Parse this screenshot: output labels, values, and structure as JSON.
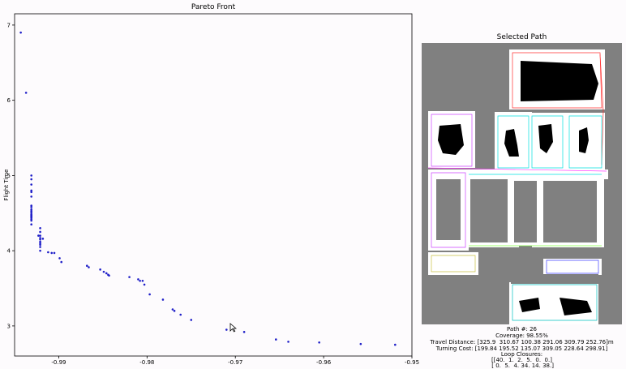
{
  "pareto": {
    "title": "Pareto Front",
    "ylabel": "Flight Time"
  },
  "selected": {
    "title": "Selected Path",
    "path_num": "Path #: 26",
    "coverage": "Coverage: 98.55%",
    "travel": "Travel Distance: [325.9  310.67 100.38 291.06 309.79 252.76]m",
    "turning": "Turning Cost: [199.84 195.52 135.07 309.05 228.64 298.91]",
    "loop_label": "Loop Closures:",
    "loop_row1": "[[40.  1.  2.  5.  0.  0.]",
    "loop_row2": " [ 0.  5.  4. 34. 14. 38.]"
  },
  "colors": {
    "point": "#1f1fc8",
    "map_bg": "#808080",
    "free": "#ffffff",
    "obstacle": "#000000"
  },
  "chart_data": {
    "type": "scatter",
    "title": "Pareto Front",
    "xlabel": "",
    "ylabel": "Flight Time",
    "xlim": [
      -0.995,
      -0.95
    ],
    "ylim": [
      2.6,
      7.15
    ],
    "xticks": [
      "-0.99",
      "-0.98",
      "-0.97",
      "-0.96",
      "-0.95"
    ],
    "yticks": [
      "3",
      "4",
      "5",
      "6",
      "7"
    ],
    "xtick_values": [
      -0.99,
      -0.98,
      -0.97,
      -0.96,
      -0.95
    ],
    "ytick_values": [
      3,
      4,
      5,
      6,
      7
    ],
    "series": [
      {
        "x": [
          -0.9943,
          -0.9937,
          -0.9931,
          -0.9931,
          -0.9931,
          -0.9931,
          -0.9931,
          -0.9931,
          -0.9931,
          -0.9931,
          -0.9931,
          -0.9931,
          -0.9931,
          -0.9931,
          -0.9931,
          -0.9931,
          -0.9931,
          -0.9931,
          -0.9931,
          -0.9931,
          -0.9931,
          -0.9931,
          -0.9923,
          -0.9921,
          -0.9921,
          -0.9921,
          -0.9921,
          -0.9921,
          -0.9921,
          -0.9921,
          -0.9921,
          -0.9921,
          -0.9921,
          -0.9918,
          -0.9912,
          -0.9908,
          -0.9905,
          -0.9899,
          -0.9897,
          -0.9868,
          -0.9866,
          -0.9853,
          -0.9849,
          -0.9846,
          -0.9844,
          -0.9843,
          -0.982,
          -0.981,
          -0.9808,
          -0.9805,
          -0.9803,
          -0.9797,
          -0.9782,
          -0.9771,
          -0.9769,
          -0.9762,
          -0.975,
          -0.971,
          -0.969,
          -0.9654,
          -0.964,
          -0.9605,
          -0.9558,
          -0.9519
        ],
        "y": [
          6.9,
          6.1,
          5.0,
          4.95,
          4.88,
          4.8,
          4.78,
          4.72,
          4.6,
          4.58,
          4.55,
          4.53,
          4.52,
          4.5,
          4.48,
          4.47,
          4.46,
          4.45,
          4.44,
          4.42,
          4.4,
          4.35,
          4.2,
          4.3,
          4.25,
          4.2,
          4.17,
          4.15,
          4.12,
          4.1,
          4.08,
          4.05,
          4.0,
          4.16,
          3.98,
          3.97,
          3.97,
          3.9,
          3.85,
          3.8,
          3.78,
          3.75,
          3.72,
          3.7,
          3.68,
          3.67,
          3.65,
          3.62,
          3.6,
          3.6,
          3.55,
          3.42,
          3.35,
          3.22,
          3.2,
          3.15,
          3.08,
          2.95,
          2.92,
          2.82,
          2.79,
          2.78,
          2.76,
          2.75
        ]
      }
    ]
  }
}
